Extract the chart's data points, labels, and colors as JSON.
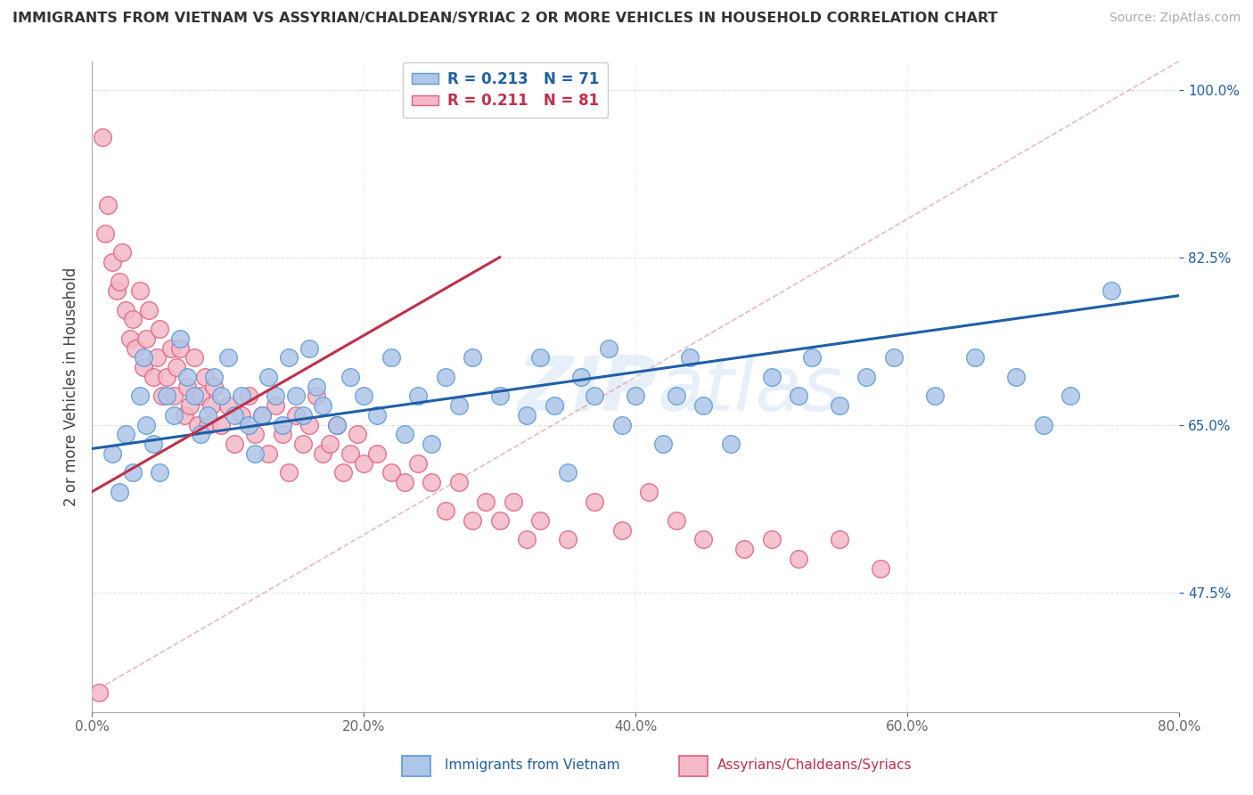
{
  "title": "IMMIGRANTS FROM VIETNAM VS ASSYRIAN/CHALDEAN/SYRIAC 2 OR MORE VEHICLES IN HOUSEHOLD CORRELATION CHART",
  "source": "Source: ZipAtlas.com",
  "xlabel_blue": "Immigrants from Vietnam",
  "xlabel_pink": "Assyrians/Chaldeans/Syriacs",
  "ylabel": "2 or more Vehicles in Household",
  "R_blue": 0.213,
  "N_blue": 71,
  "R_pink": 0.211,
  "N_pink": 81,
  "x_min": 0.0,
  "x_max": 80.0,
  "y_min": 35.0,
  "y_max": 103.0,
  "yticks": [
    47.5,
    65.0,
    82.5,
    100.0
  ],
  "xticks": [
    0.0,
    20.0,
    40.0,
    60.0,
    80.0
  ],
  "blue_color": "#aec6e8",
  "blue_edge": "#5b9bd5",
  "pink_color": "#f4b8c8",
  "pink_edge": "#e06080",
  "blue_line_color": "#1f5fa6",
  "pink_line_color": "#c0304a",
  "diagonal_color": "#e0a0b0",
  "background": "#ffffff",
  "watermark_top": "ZIP",
  "watermark_bot": "atlas",
  "blue_points_x": [
    1.5,
    2.0,
    2.5,
    3.0,
    3.5,
    3.8,
    4.0,
    4.5,
    5.0,
    5.5,
    6.0,
    6.5,
    7.0,
    7.5,
    8.0,
    8.5,
    9.0,
    9.5,
    10.0,
    10.5,
    11.0,
    11.5,
    12.0,
    12.5,
    13.0,
    13.5,
    14.0,
    14.5,
    15.0,
    15.5,
    16.0,
    16.5,
    17.0,
    18.0,
    19.0,
    20.0,
    21.0,
    22.0,
    23.0,
    24.0,
    25.0,
    26.0,
    27.0,
    28.0,
    30.0,
    32.0,
    33.0,
    34.0,
    35.0,
    36.0,
    37.0,
    38.0,
    39.0,
    40.0,
    42.0,
    43.0,
    44.0,
    45.0,
    47.0,
    50.0,
    52.0,
    53.0,
    55.0,
    57.0,
    59.0,
    62.0,
    65.0,
    68.0,
    70.0,
    72.0,
    75.0
  ],
  "blue_points_y": [
    62.0,
    58.0,
    64.0,
    60.0,
    68.0,
    72.0,
    65.0,
    63.0,
    60.0,
    68.0,
    66.0,
    74.0,
    70.0,
    68.0,
    64.0,
    66.0,
    70.0,
    68.0,
    72.0,
    66.0,
    68.0,
    65.0,
    62.0,
    66.0,
    70.0,
    68.0,
    65.0,
    72.0,
    68.0,
    66.0,
    73.0,
    69.0,
    67.0,
    65.0,
    70.0,
    68.0,
    66.0,
    72.0,
    64.0,
    68.0,
    63.0,
    70.0,
    67.0,
    72.0,
    68.0,
    66.0,
    72.0,
    67.0,
    60.0,
    70.0,
    68.0,
    73.0,
    65.0,
    68.0,
    63.0,
    68.0,
    72.0,
    67.0,
    63.0,
    70.0,
    68.0,
    72.0,
    67.0,
    70.0,
    72.0,
    68.0,
    72.0,
    70.0,
    65.0,
    68.0,
    79.0
  ],
  "pink_points_x": [
    0.5,
    0.8,
    1.0,
    1.2,
    1.5,
    1.8,
    2.0,
    2.2,
    2.5,
    2.8,
    3.0,
    3.2,
    3.5,
    3.8,
    4.0,
    4.2,
    4.5,
    4.8,
    5.0,
    5.2,
    5.5,
    5.8,
    6.0,
    6.2,
    6.5,
    6.8,
    7.0,
    7.2,
    7.5,
    7.8,
    8.0,
    8.3,
    8.5,
    8.8,
    9.0,
    9.5,
    10.0,
    10.5,
    11.0,
    11.5,
    12.0,
    12.5,
    13.0,
    13.5,
    14.0,
    14.5,
    15.0,
    15.5,
    16.0,
    16.5,
    17.0,
    17.5,
    18.0,
    18.5,
    19.0,
    19.5,
    20.0,
    21.0,
    22.0,
    23.0,
    24.0,
    25.0,
    26.0,
    27.0,
    28.0,
    29.0,
    30.0,
    31.0,
    32.0,
    33.0,
    35.0,
    37.0,
    39.0,
    41.0,
    43.0,
    45.0,
    48.0,
    50.0,
    52.0,
    55.0,
    58.0
  ],
  "pink_points_y": [
    37.0,
    95.0,
    85.0,
    88.0,
    82.0,
    79.0,
    80.0,
    83.0,
    77.0,
    74.0,
    76.0,
    73.0,
    79.0,
    71.0,
    74.0,
    77.0,
    70.0,
    72.0,
    75.0,
    68.0,
    70.0,
    73.0,
    68.0,
    71.0,
    73.0,
    66.0,
    69.0,
    67.0,
    72.0,
    65.0,
    68.0,
    70.0,
    65.0,
    67.0,
    69.0,
    65.0,
    67.0,
    63.0,
    66.0,
    68.0,
    64.0,
    66.0,
    62.0,
    67.0,
    64.0,
    60.0,
    66.0,
    63.0,
    65.0,
    68.0,
    62.0,
    63.0,
    65.0,
    60.0,
    62.0,
    64.0,
    61.0,
    62.0,
    60.0,
    59.0,
    61.0,
    59.0,
    56.0,
    59.0,
    55.0,
    57.0,
    55.0,
    57.0,
    53.0,
    55.0,
    53.0,
    57.0,
    54.0,
    58.0,
    55.0,
    53.0,
    52.0,
    53.0,
    51.0,
    53.0,
    50.0
  ],
  "blue_line_x0": 0.0,
  "blue_line_x1": 80.0,
  "blue_line_y0": 62.5,
  "blue_line_y1": 78.5,
  "pink_line_x0": 0.0,
  "pink_line_x1": 30.0,
  "pink_line_y0": 58.0,
  "pink_line_y1": 82.5,
  "diag_x0": 0.0,
  "diag_x1": 80.0,
  "diag_y0": 37.0,
  "diag_y1": 103.0
}
